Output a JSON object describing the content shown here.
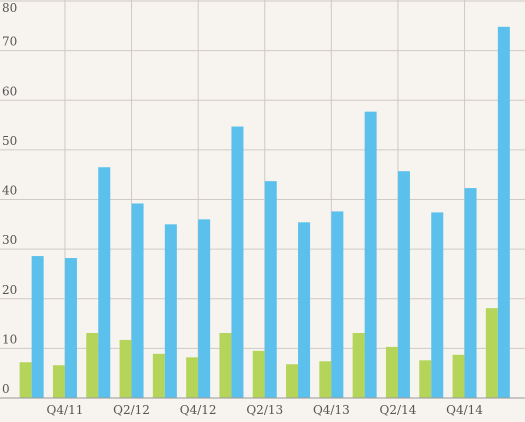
{
  "chart_data": {
    "type": "bar",
    "categories": [
      null,
      "Q4/11",
      null,
      "Q2/12",
      null,
      "Q4/12",
      null,
      "Q2/13",
      null,
      "Q4/13",
      null,
      "Q2/14",
      null,
      "Q4/14",
      null
    ],
    "series": [
      {
        "color": "#b5d55a",
        "values": [
          7.2,
          6.6,
          13.1,
          11.7,
          8.9,
          8.2,
          13.1,
          9.5,
          6.8,
          7.4,
          13.1,
          10.3,
          7.6,
          8.7,
          18.1
        ]
      },
      {
        "color": "#5bc0eb",
        "values": [
          28.6,
          28.2,
          46.5,
          39.2,
          35,
          36,
          54.7,
          43.7,
          35.4,
          37.6,
          57.7,
          45.7,
          37.4,
          42.3,
          74.8
        ]
      }
    ],
    "ylim": [
      0,
      80
    ],
    "yticks": [
      0,
      10,
      20,
      30,
      40,
      50,
      60,
      70,
      80
    ],
    "grid": true
  }
}
